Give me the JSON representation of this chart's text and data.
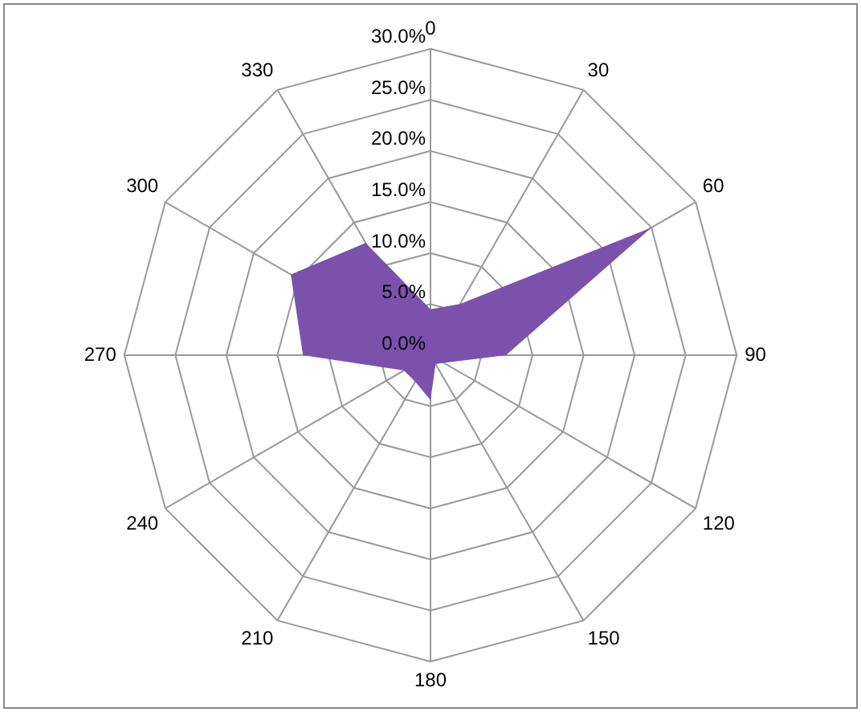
{
  "chart_data": {
    "type": "radar",
    "categories": [
      "0",
      "30",
      "60",
      "90",
      "120",
      "150",
      "180",
      "210",
      "240",
      "270",
      "300",
      "330"
    ],
    "series": [
      {
        "color": "#7b52ab",
        "values": [
          4.5,
          5.8,
          25,
          7.4,
          1.5,
          1,
          4.4,
          3,
          3,
          12.5,
          15.8,
          12.7
        ]
      }
    ],
    "ylim": [
      0,
      30
    ],
    "yticks": [
      {
        "value": 0,
        "label": "0.0%"
      },
      {
        "value": 5,
        "label": "5.0%"
      },
      {
        "value": 10,
        "label": "10.0%"
      },
      {
        "value": 15,
        "label": "15.0%"
      },
      {
        "value": 20,
        "label": "20.0%"
      },
      {
        "value": 25,
        "label": "25.0%"
      },
      {
        "value": 30,
        "label": "30.0%"
      }
    ],
    "grid": true,
    "legend": false
  }
}
